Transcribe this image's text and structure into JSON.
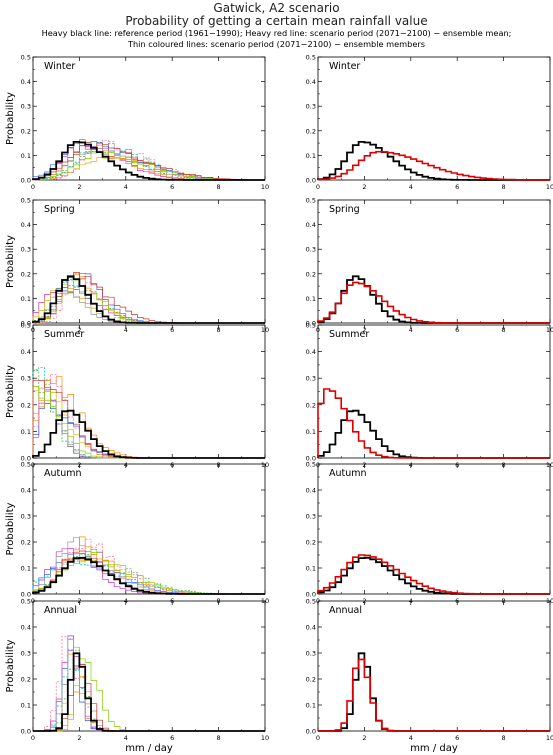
{
  "header": {
    "title_line1": "Gatwick, A2 scenario",
    "title_line2": "Probability of getting a certain mean rainfall value",
    "legend_line1": "Heavy black line: reference period (1961−1990); Heavy red line: scenario period (2071−2100) − ensemble mean;",
    "legend_line2": "Thin coloured lines: scenario period (2071−2100) − ensemble members"
  },
  "colors": {
    "reference": "#000000",
    "scenario_mean": "#dd0000",
    "members": [
      "#cc33cc",
      "#33aa33",
      "#e8b000",
      "#3366ff",
      "#00bbbb",
      "#ff8800",
      "#999999",
      "#ff6699",
      "#88cc00",
      "#cc3333"
    ]
  },
  "chart_data": {
    "type": "step-line",
    "xlabel": "mm / day",
    "ylabel": "Probability",
    "xlim": [
      0,
      10
    ],
    "ylim": [
      0,
      0.5
    ],
    "x_ticks": [
      0,
      2,
      4,
      6,
      8,
      10
    ],
    "y_ticks": [
      0.0,
      0.1,
      0.2,
      0.3,
      0.4,
      0.5
    ],
    "bin_width": 0.25,
    "ensemble_members": 10,
    "panels": [
      {
        "season": "Winter",
        "left_title": "Winter",
        "right_title": "Winter",
        "reference": {
          "mode": 1.9,
          "peak": 0.155,
          "spread": 0.65,
          "skew": 1.9
        },
        "scenario_mean": {
          "mode": 2.6,
          "peak": 0.115,
          "spread": 0.85,
          "skew": 2.3
        }
      },
      {
        "season": "Spring",
        "left_title": "Spring",
        "right_title": "Spring",
        "reference": {
          "mode": 1.6,
          "peak": 0.19,
          "spread": 0.55,
          "skew": 1.4
        },
        "scenario_mean": {
          "mode": 1.6,
          "peak": 0.165,
          "spread": 0.6,
          "skew": 1.9
        }
      },
      {
        "season": "Summer",
        "left_title": "Summer",
        "right_title": "Summer",
        "reference": {
          "mode": 1.5,
          "peak": 0.18,
          "spread": 0.55,
          "skew": 1.5
        },
        "scenario_mean": {
          "mode": 0.4,
          "peak": 0.26,
          "spread": 0.4,
          "skew": 2.2
        }
      },
      {
        "season": "Autumn",
        "left_title": "Autumn",
        "right_title": "Autumn",
        "reference": {
          "mode": 2.0,
          "peak": 0.14,
          "spread": 0.75,
          "skew": 1.6
        },
        "scenario_mean": {
          "mode": 1.9,
          "peak": 0.15,
          "spread": 0.8,
          "skew": 1.9
        }
      },
      {
        "season": "Annual",
        "left_title": "Annual",
        "right_title": "Annual",
        "reference": {
          "mode": 1.9,
          "peak": 0.3,
          "spread": 0.3,
          "skew": 1.2
        },
        "scenario_mean": {
          "mode": 1.8,
          "peak": 0.28,
          "spread": 0.32,
          "skew": 1.3
        }
      }
    ]
  }
}
